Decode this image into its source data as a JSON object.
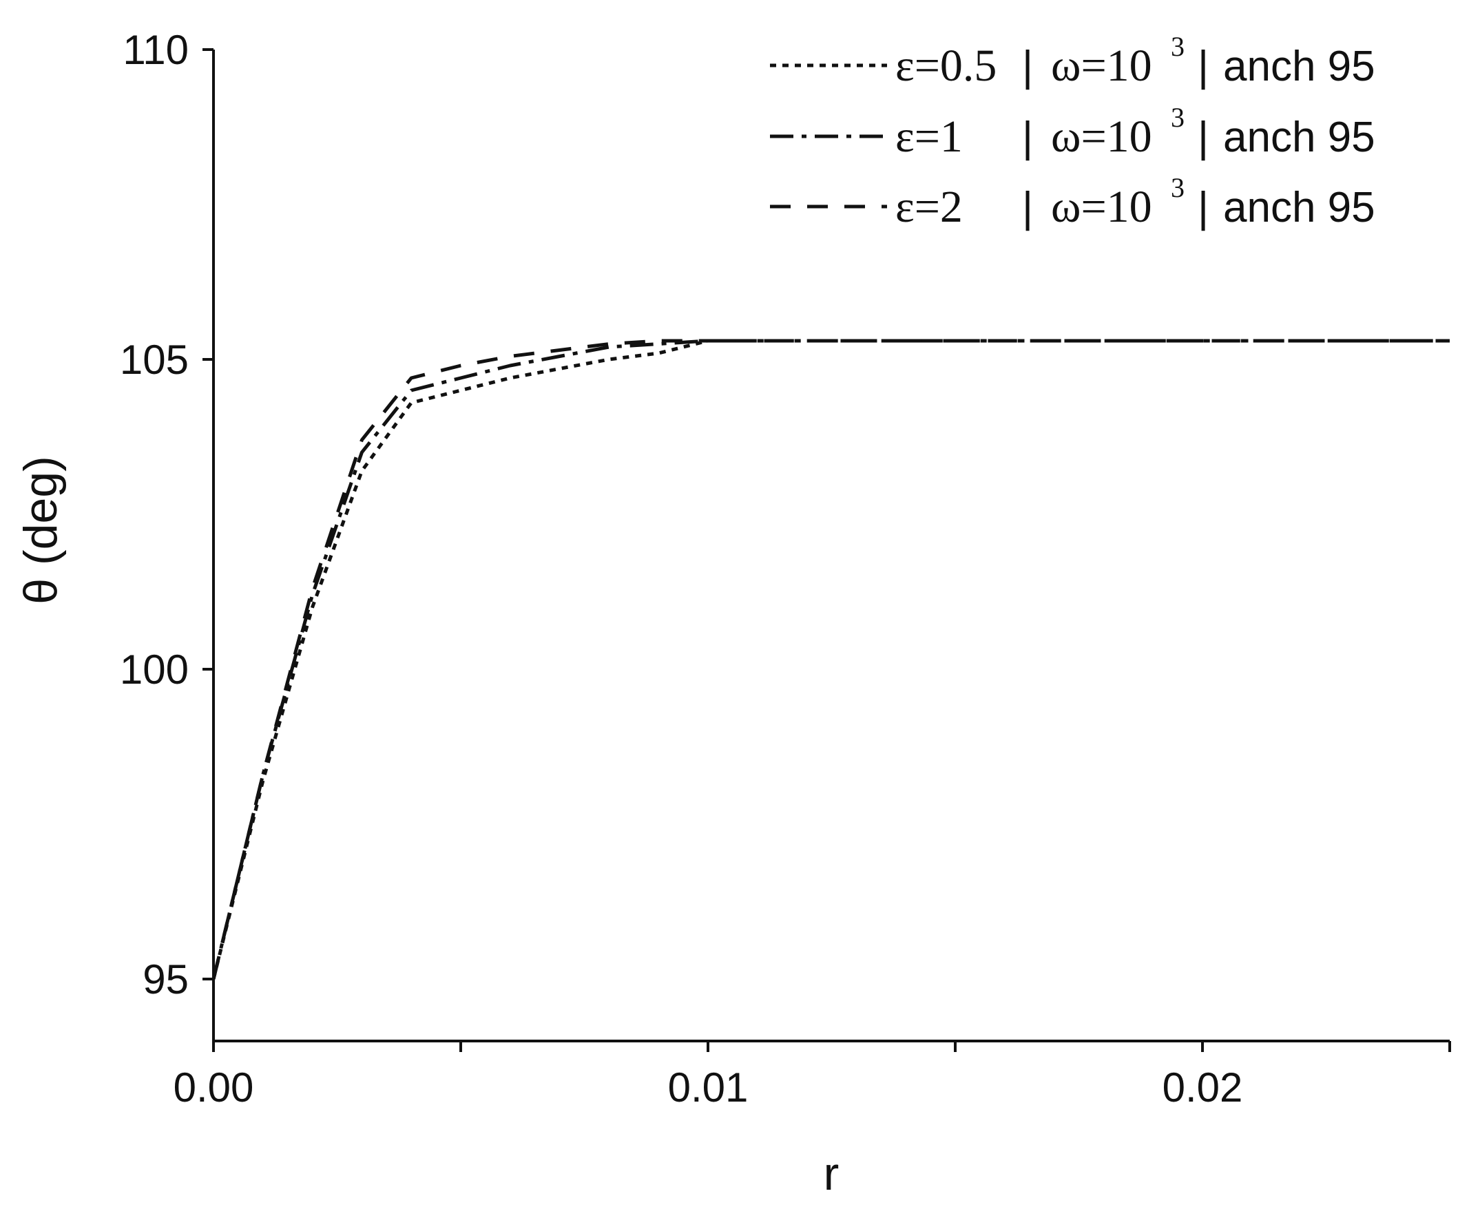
{
  "chart_data": {
    "type": "line",
    "xlabel": "r",
    "ylabel": "θ (deg)",
    "xlim": [
      0,
      0.025
    ],
    "ylim": [
      94.0,
      110
    ],
    "x_ticks": [
      0.0,
      0.005,
      0.01,
      0.015,
      0.02,
      0.025
    ],
    "x_tick_labels": [
      {
        "value": 0.0,
        "label": "0.00"
      },
      {
        "value": 0.01,
        "label": "0.01"
      },
      {
        "value": 0.02,
        "label": "0.02"
      }
    ],
    "y_ticks": [
      95,
      100,
      105,
      110
    ],
    "y_tick_labels": [
      {
        "value": 95,
        "label": "95"
      },
      {
        "value": 100,
        "label": "100"
      },
      {
        "value": 105,
        "label": "105"
      },
      {
        "value": 110,
        "label": "110"
      }
    ],
    "grid": false,
    "legend_position": "top-right",
    "series": [
      {
        "name": "ε=0.5 | ω=10³ | anch 95",
        "legend": {
          "eps": "ε=0.5",
          "sep1": "|",
          "omega": "ω=10",
          "exp": "3",
          "sep2": "|",
          "anch": "anch 95"
        },
        "dash": "dotted",
        "x": [
          0,
          0.001,
          0.002,
          0.003,
          0.004,
          0.005,
          0.006,
          0.007,
          0.008,
          0.009,
          0.01,
          0.015,
          0.02,
          0.025
        ],
        "y": [
          95.0,
          98.2,
          101.0,
          103.2,
          104.3,
          104.5,
          104.7,
          104.85,
          105.0,
          105.1,
          105.3,
          105.3,
          105.3,
          105.3
        ]
      },
      {
        "name": "ε=1 | ω=10³ | anch 95",
        "legend": {
          "eps": "ε=1",
          "sep1": "|",
          "omega": "ω=10",
          "exp": "3",
          "sep2": "|",
          "anch": "anch 95"
        },
        "dash": "dash-dot",
        "x": [
          0,
          0.001,
          0.002,
          0.003,
          0.004,
          0.005,
          0.006,
          0.007,
          0.008,
          0.009,
          0.01,
          0.015,
          0.02,
          0.025
        ],
        "y": [
          95.0,
          98.3,
          101.2,
          103.5,
          104.5,
          104.7,
          104.9,
          105.05,
          105.2,
          105.25,
          105.3,
          105.3,
          105.3,
          105.3
        ]
      },
      {
        "name": "ε=2 | ω=10³ | anch 95",
        "legend": {
          "eps": "ε=2",
          "sep1": "|",
          "omega": "ω=10",
          "exp": "3",
          "sep2": "|",
          "anch": "anch 95"
        },
        "dash": "dashed",
        "x": [
          0,
          0.001,
          0.002,
          0.003,
          0.004,
          0.005,
          0.006,
          0.007,
          0.008,
          0.009,
          0.01,
          0.015,
          0.02,
          0.025
        ],
        "y": [
          95.0,
          98.3,
          101.3,
          103.7,
          104.7,
          104.9,
          105.05,
          105.15,
          105.25,
          105.3,
          105.3,
          105.3,
          105.3,
          105.3
        ]
      }
    ]
  }
}
